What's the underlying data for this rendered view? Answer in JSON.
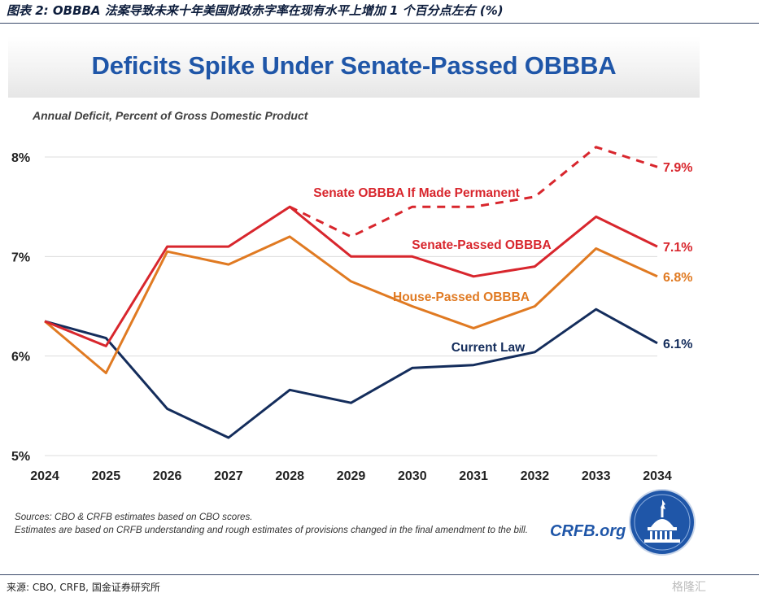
{
  "figure_caption": "图表 2: OBBBA 法案导致未来十年美国财政赤字率在现有水平上增加 1 个百分点左右 (%)",
  "footer": {
    "source": "来源: CBO, CRFB, 国金证券研究所",
    "watermark": "格隆汇"
  },
  "sources_note": {
    "line1": "Sources: CBO & CRFB estimates based on CBO scores.",
    "line2": "Estimates are based on CRFB understanding and rough estimates of provisions changed in the final amendment to the bill."
  },
  "brand": {
    "site": "CRFB.org"
  },
  "colors": {
    "senate": "#d8262d",
    "house": "#e07a22",
    "current": "#142d5c",
    "title": "#1f56a8"
  },
  "chart_data": {
    "type": "line",
    "title": "Deficits Spike Under Senate-Passed OBBBA",
    "ylabel": "Annual Deficit, Percent of Gross Domestic Product",
    "xlabel": "",
    "ylim": [
      5,
      8
    ],
    "yticks": [
      5,
      6,
      7,
      8
    ],
    "ytick_labels": [
      "5%",
      "6%",
      "7%",
      "8%"
    ],
    "x": [
      2024,
      2025,
      2026,
      2027,
      2028,
      2029,
      2030,
      2031,
      2032,
      2033,
      2034
    ],
    "series": [
      {
        "name": "Senate OBBBA If Made Permanent",
        "style": "dashed",
        "color": "#d8262d",
        "x": [
          2028,
          2029,
          2030,
          2031,
          2032,
          2033,
          2034
        ],
        "values": [
          7.5,
          7.2,
          7.5,
          7.5,
          7.6,
          8.1,
          7.9
        ],
        "end_label": "7.9%"
      },
      {
        "name": "Senate-Passed OBBBA",
        "style": "solid",
        "color": "#d8262d",
        "x": [
          2024,
          2025,
          2026,
          2027,
          2028,
          2029,
          2030,
          2031,
          2032,
          2033,
          2034
        ],
        "values": [
          6.35,
          6.1,
          7.1,
          7.1,
          7.5,
          7.0,
          7.0,
          6.8,
          6.9,
          7.4,
          7.1
        ],
        "end_label": "7.1%"
      },
      {
        "name": "House-Passed OBBBA",
        "style": "solid",
        "color": "#e07a22",
        "x": [
          2024,
          2025,
          2026,
          2027,
          2028,
          2029,
          2030,
          2031,
          2032,
          2033,
          2034
        ],
        "values": [
          6.35,
          5.83,
          7.05,
          6.92,
          7.2,
          6.75,
          6.5,
          6.28,
          6.5,
          7.08,
          6.8
        ],
        "end_label": "6.8%"
      },
      {
        "name": "Current Law",
        "style": "solid",
        "color": "#142d5c",
        "x": [
          2024,
          2025,
          2026,
          2027,
          2028,
          2029,
          2030,
          2031,
          2032,
          2033,
          2034
        ],
        "values": [
          6.35,
          6.18,
          5.47,
          5.18,
          5.66,
          5.53,
          5.88,
          5.91,
          6.04,
          6.47,
          6.13
        ],
        "end_label": "6.1%"
      }
    ]
  }
}
